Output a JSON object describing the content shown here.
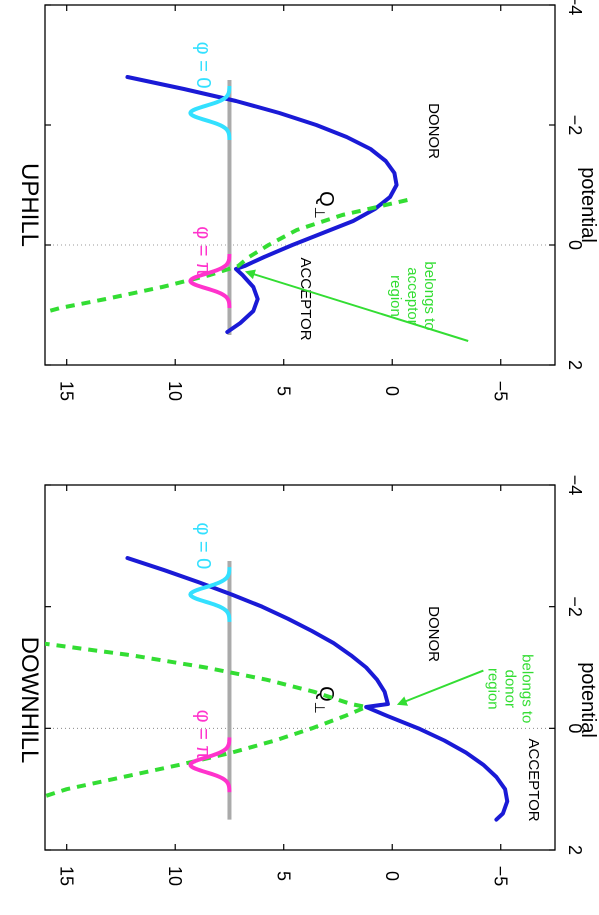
{
  "figure": {
    "orientation": "rotated-90-clockwise",
    "axis_color": "#000000"
  },
  "chart_data": [
    {
      "type": "line",
      "title": "DOWNHILL",
      "xlabel": "Q",
      "xlabel_subscript": "⊥",
      "ylabel": "potential",
      "xlim": [
        -4,
        2
      ],
      "ylim": [
        -7.5,
        16
      ],
      "xticks": [
        -4,
        -2,
        0,
        2
      ],
      "xtick_labels": [
        "−4",
        "−2",
        "0",
        "2"
      ],
      "yticks": [
        -5,
        0,
        5,
        10,
        15
      ],
      "ytick_labels": [
        "−5",
        "0",
        "5",
        "10",
        "15"
      ],
      "grid": false,
      "reference_line_x": 0,
      "series": [
        {
          "role": "potential-surface",
          "color": "#1a1ad6",
          "style": "solid",
          "x": [
            -2.8,
            -2.6,
            -2.4,
            -2.2,
            -2.0,
            -1.8,
            -1.6,
            -1.4,
            -1.2,
            -1.0,
            -0.8,
            -0.6,
            -0.4,
            -0.35,
            -0.2,
            0.0,
            0.2,
            0.4,
            0.6,
            0.8,
            1.0,
            1.2,
            1.4,
            1.5
          ],
          "y": [
            12.2,
            10.5,
            8.9,
            7.4,
            6.0,
            4.8,
            3.7,
            2.7,
            1.9,
            1.2,
            0.7,
            0.35,
            0.2,
            1.2,
            0.2,
            -1.2,
            -2.4,
            -3.4,
            -4.2,
            -4.8,
            -5.2,
            -5.3,
            -5.1,
            -4.8
          ]
        },
        {
          "role": "crossing-parabola",
          "color": "#33dd33",
          "style": "dashed",
          "x": [
            -1.4,
            -1.2,
            -1.0,
            -0.8,
            -0.6,
            -0.4,
            -0.35,
            -0.2,
            0.0,
            0.2,
            0.4,
            0.6,
            0.8,
            1.0,
            1.15
          ],
          "y": [
            16.2,
            12.0,
            8.6,
            5.8,
            3.6,
            1.9,
            1.2,
            2.2,
            3.7,
            5.4,
            7.4,
            9.8,
            12.4,
            15.0,
            16.3
          ]
        }
      ],
      "level": {
        "y": 7.5,
        "x_start": -2.75,
        "x_end": 1.5,
        "color": "#aaaaaa"
      },
      "wavepackets": [
        {
          "label": "φ = 0",
          "center": -2.2,
          "width": 0.12,
          "height": 1.8,
          "color": "#33e0ff"
        },
        {
          "label": "φ = π",
          "center": 0.6,
          "width": 0.12,
          "height": 1.8,
          "color": "#ff33cc"
        }
      ],
      "annotations": [
        {
          "text": "DONOR",
          "x": -1.55,
          "y": -1.7
        },
        {
          "text": "ACCEPTOR",
          "x": 0.85,
          "y": -6.3
        }
      ],
      "callout": {
        "lines": [
          "belongs to",
          "donor",
          "region"
        ],
        "color": "#33dd33",
        "text_x": -0.65,
        "text_y": -6.0,
        "arrow_from": [
          -0.95,
          -4.2
        ],
        "arrow_to": [
          -0.4,
          -0.3
        ]
      }
    },
    {
      "type": "line",
      "title": "UPHILL",
      "xlabel": "Q",
      "xlabel_subscript": "⊥",
      "ylabel": "potential",
      "xlim": [
        -4,
        2
      ],
      "ylim": [
        -7.5,
        16
      ],
      "xticks": [
        -4,
        -2,
        0,
        2
      ],
      "xtick_labels": [
        "−4",
        "−2",
        "0",
        "2"
      ],
      "yticks": [
        -5,
        0,
        5,
        10,
        15
      ],
      "ytick_labels": [
        "−5",
        "0",
        "5",
        "10",
        "15"
      ],
      "grid": false,
      "reference_line_x": 0,
      "series": [
        {
          "role": "potential-surface",
          "color": "#1a1ad6",
          "style": "solid",
          "x": [
            -2.8,
            -2.6,
            -2.4,
            -2.2,
            -2.0,
            -1.8,
            -1.6,
            -1.4,
            -1.2,
            -1.0,
            -0.8,
            -0.6,
            -0.4,
            -0.2,
            0.0,
            0.2,
            0.35,
            0.4,
            0.5,
            0.7,
            0.9,
            1.1,
            1.3,
            1.45
          ],
          "y": [
            12.2,
            9.6,
            7.2,
            5.2,
            3.5,
            2.1,
            1.0,
            0.3,
            -0.1,
            -0.2,
            0.1,
            0.8,
            1.8,
            3.2,
            4.6,
            5.9,
            6.8,
            7.2,
            6.9,
            6.4,
            6.2,
            6.4,
            7.0,
            7.6
          ]
        },
        {
          "role": "crossing-parabola",
          "color": "#33dd33",
          "style": "dashed",
          "x": [
            -0.75,
            -0.5,
            -0.25,
            0.0,
            0.2,
            0.35,
            0.5,
            0.7,
            0.9,
            1.05,
            1.15
          ],
          "y": [
            -0.7,
            2.3,
            4.4,
            5.7,
            6.6,
            7.1,
            8.4,
            10.6,
            13.2,
            15.3,
            16.3
          ]
        }
      ],
      "level": {
        "y": 7.5,
        "x_start": -2.75,
        "x_end": 1.5,
        "color": "#aaaaaa"
      },
      "wavepackets": [
        {
          "label": "φ = 0",
          "center": -2.2,
          "width": 0.12,
          "height": 1.8,
          "color": "#33e0ff"
        },
        {
          "label": "φ = π",
          "center": 0.6,
          "width": 0.12,
          "height": 1.8,
          "color": "#ff33cc"
        }
      ],
      "annotations": [
        {
          "text": "DONOR",
          "x": -1.9,
          "y": -1.7
        },
        {
          "text": "ACCEPTOR",
          "x": 0.9,
          "y": 4.2
        }
      ],
      "callout": {
        "lines": [
          "belongs to",
          "acceptor",
          "region"
        ],
        "color": "#33dd33",
        "text_x": 0.85,
        "text_y": -1.5,
        "arrow_from": [
          1.6,
          -3.5
        ],
        "arrow_to": [
          0.45,
          6.7
        ]
      }
    }
  ]
}
